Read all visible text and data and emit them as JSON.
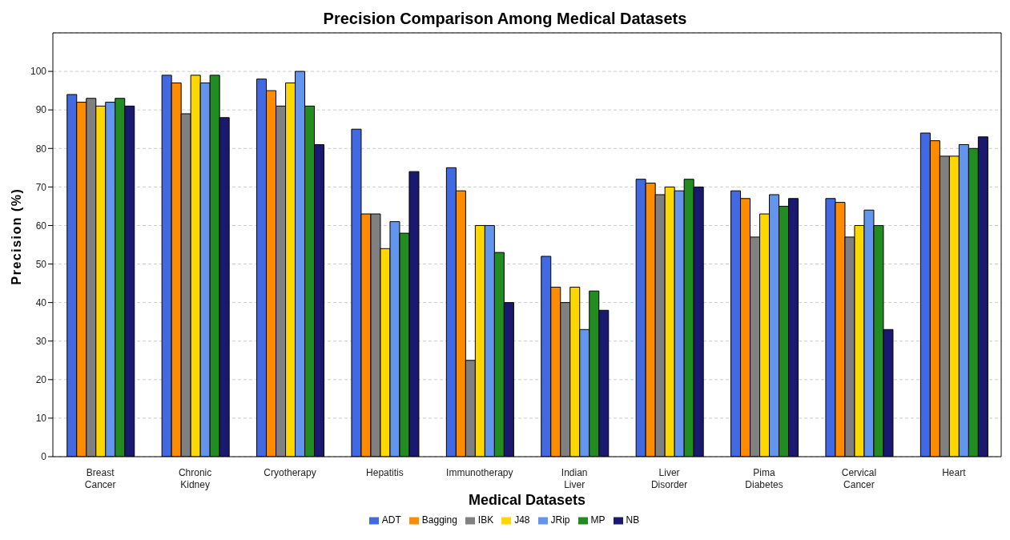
{
  "chart_data": {
    "type": "bar",
    "title": "Precision Comparison Among Medical Datasets",
    "xlabel": "Medical Datasets",
    "ylabel": "Precision (%)",
    "categories": [
      "Breast Cancer",
      "Chronic Kidney",
      "Cryotherapy",
      "Hepatitis",
      "Immunotherapy",
      "Indian Liver",
      "Liver Disorder",
      "Pima Diabetes",
      "Cervical Cancer",
      "Heart"
    ],
    "series": [
      {
        "name": "ADT",
        "color": "#4169e1",
        "values": [
          94,
          99,
          98,
          85,
          75,
          52,
          72,
          69,
          67,
          84
        ]
      },
      {
        "name": "Bagging",
        "color": "#ff8c00",
        "values": [
          92,
          97,
          95,
          63,
          69,
          44,
          71,
          67,
          66,
          82
        ]
      },
      {
        "name": "IBK",
        "color": "#808080",
        "values": [
          93,
          89,
          91,
          63,
          25,
          40,
          68,
          57,
          57,
          78
        ]
      },
      {
        "name": "J48",
        "color": "#ffd700",
        "values": [
          91,
          99,
          97,
          54,
          60,
          44,
          70,
          63,
          60,
          78
        ]
      },
      {
        "name": "JRip",
        "color": "#6495ed",
        "values": [
          92,
          97,
          100,
          61,
          60,
          33,
          69,
          68,
          64,
          81
        ]
      },
      {
        "name": "MP",
        "color": "#228b22",
        "values": [
          93,
          99,
          91,
          58,
          53,
          43,
          72,
          65,
          60,
          80
        ]
      },
      {
        "name": "NB",
        "color": "#191970",
        "values": [
          91,
          88,
          81,
          74,
          40,
          38,
          70,
          67,
          33,
          83
        ]
      }
    ],
    "ylim": [
      0,
      110
    ],
    "yticks": [
      0,
      10,
      20,
      30,
      40,
      50,
      60,
      70,
      80,
      90,
      100
    ],
    "grid": "y",
    "legend": "bottom"
  }
}
